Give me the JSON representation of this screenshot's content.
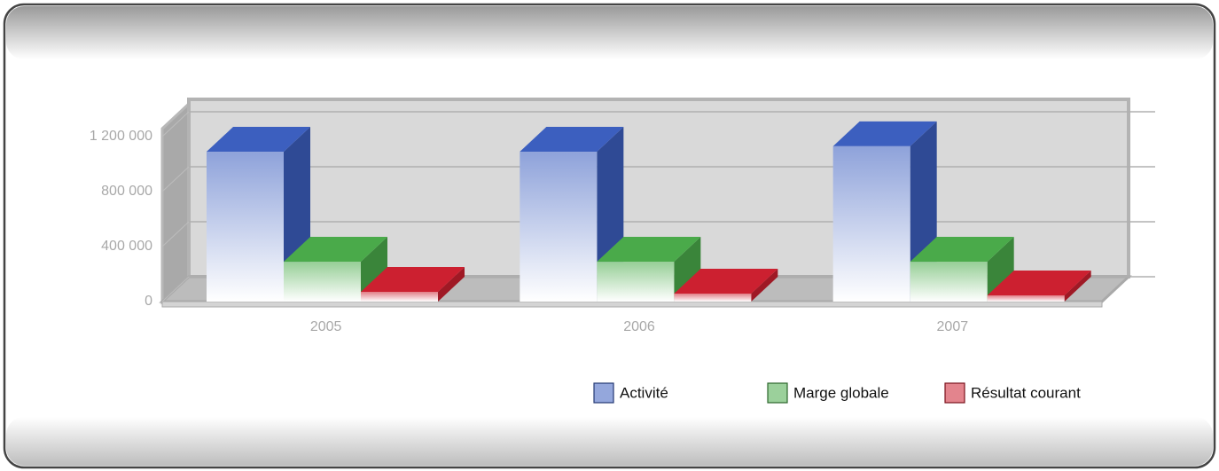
{
  "chart_data": {
    "type": "bar3d",
    "categories": [
      "2005",
      "2006",
      "2007"
    ],
    "series": [
      {
        "name": "Activité",
        "color": "#3c5fbf",
        "values": [
          1090000,
          1090000,
          1130000
        ]
      },
      {
        "name": "Marge globale",
        "color": "#4aaa4a",
        "values": [
          290000,
          290000,
          290000
        ]
      },
      {
        "name": "Résultat courant",
        "color": "#cc2030",
        "values": [
          71000,
          58000,
          45000
        ]
      }
    ],
    "ylim": [
      0,
      1300000
    ],
    "yticks": [
      0,
      {
        "value": 400000,
        "label": "400 000"
      },
      {
        "value": 800000,
        "label": "800 000"
      },
      {
        "value": 1200000,
        "label": "1 200 000"
      }
    ],
    "grid": true,
    "legend": "bottom-right"
  }
}
